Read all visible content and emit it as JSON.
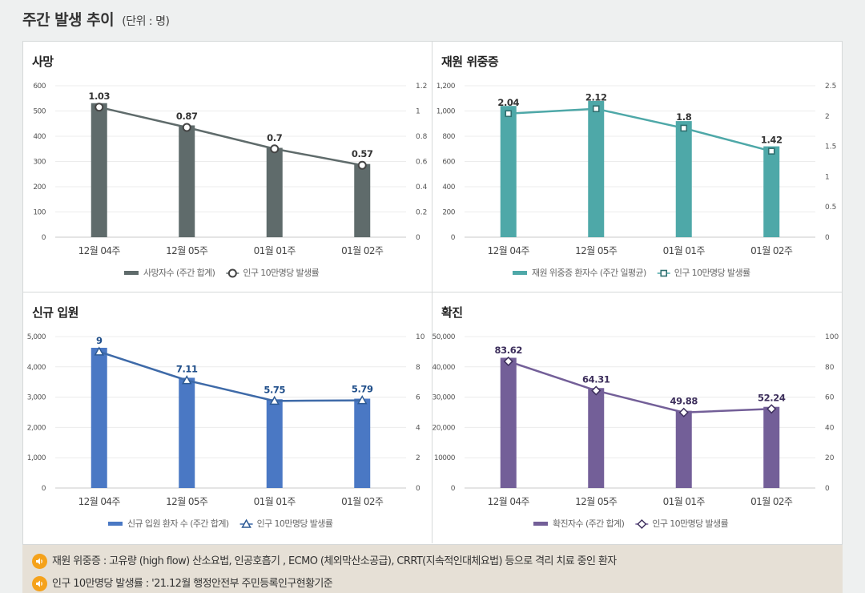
{
  "header": {
    "title": "주간 발생 추이",
    "unit": "(단위 : 명)"
  },
  "notes": [
    "재원 위중증 : 고유량 (high flow) 산소요법, 인공호흡기 , ECMO (체외막산소공급), CRRT(지속적인대체요법) 등으로 격리 치료 중인 환자",
    "인구 10만명당 발생률 : '21.12월 행정안전부 주민등록인구현황기준"
  ],
  "chart_data": [
    {
      "id": "death",
      "type": "bar",
      "title": "사망",
      "categories": [
        "12월 04주",
        "12월 05주",
        "01월 01주",
        "01월 02주"
      ],
      "series": [
        {
          "name": "사망자수 (주간 합계)",
          "type": "bar",
          "axis": "left",
          "values": [
            531,
            443,
            354,
            290
          ]
        },
        {
          "name": "인구 10만명당 발생률",
          "type": "line",
          "axis": "right",
          "values": [
            1.03,
            0.87,
            0.7,
            0.57
          ]
        }
      ],
      "y_left": {
        "min": 0,
        "max": 600,
        "ticks": [
          "0",
          "100",
          "200",
          "300",
          "400",
          "500",
          "600"
        ]
      },
      "y_right": {
        "min": 0,
        "max": 1.2,
        "ticks": [
          "0",
          "0.2",
          "0.4",
          "0.6",
          "0.8",
          "1",
          "1.2"
        ]
      },
      "colors": {
        "bar": "#5f6b6b",
        "line": "#5f6b6b"
      },
      "marker": "circle"
    },
    {
      "id": "severe",
      "type": "bar",
      "title": "재원 위중증",
      "categories": [
        "12월 04주",
        "12월 05주",
        "01월 01주",
        "01월 02주"
      ],
      "series": [
        {
          "name": "재원 위중증 환자수 (주간 일평균)",
          "type": "bar",
          "axis": "left",
          "values": [
            1040,
            1080,
            920,
            720
          ]
        },
        {
          "name": "인구 10만명당 발생률",
          "type": "line",
          "axis": "right",
          "values": [
            2.04,
            2.12,
            1.8,
            1.42
          ]
        }
      ],
      "y_left": {
        "min": 0,
        "max": 1200,
        "ticks": [
          "0",
          "200",
          "400",
          "600",
          "800",
          "1,000",
          "1,200"
        ]
      },
      "y_right": {
        "min": 0,
        "max": 2.5,
        "ticks": [
          "0",
          "0.5",
          "1",
          "1.5",
          "2",
          "2.5"
        ]
      },
      "colors": {
        "bar": "#4ea8a8",
        "line": "#4ea8a8"
      },
      "marker": "square"
    },
    {
      "id": "admission",
      "type": "bar",
      "title": "신규 입원",
      "categories": [
        "12월 04주",
        "12월 05주",
        "01월 01주",
        "01월 02주"
      ],
      "series": [
        {
          "name": "신규 입원 환자 수 (주간 합계)",
          "type": "bar",
          "axis": "left",
          "values": [
            4630,
            3640,
            2930,
            2950
          ]
        },
        {
          "name": "인구 10만명당 발생률",
          "type": "line",
          "axis": "right",
          "values": [
            9,
            7.11,
            5.75,
            5.79
          ]
        }
      ],
      "y_left": {
        "min": 0,
        "max": 5000,
        "ticks": [
          "0",
          "1,000",
          "2,000",
          "3,000",
          "4,000",
          "5,000"
        ]
      },
      "y_right": {
        "min": 0,
        "max": 10,
        "ticks": [
          "0",
          "2",
          "4",
          "6",
          "8",
          "10"
        ]
      },
      "colors": {
        "bar": "#4a78c4",
        "line": "#3e6aa8",
        "label": "#1f4e8a"
      },
      "marker": "triangle"
    },
    {
      "id": "confirmed",
      "type": "bar",
      "title": "확진",
      "categories": [
        "12월 04주",
        "12월 05주",
        "01월 01주",
        "01월 02주"
      ],
      "series": [
        {
          "name": "확진자수 (주간 합계)",
          "type": "bar",
          "axis": "left",
          "values": [
            43000,
            33000,
            25500,
            26800
          ]
        },
        {
          "name": "인구 10만명당 발생률",
          "type": "line",
          "axis": "right",
          "values": [
            83.62,
            64.31,
            49.88,
            52.24
          ]
        }
      ],
      "y_left": {
        "min": 0,
        "max": 50000,
        "ticks": [
          "0",
          "10000",
          "20,000",
          "30,000",
          "40,000",
          "50,000"
        ]
      },
      "y_right": {
        "min": 0,
        "max": 100,
        "ticks": [
          "0",
          "20",
          "40",
          "60",
          "80",
          "100"
        ]
      },
      "colors": {
        "bar": "#735f98",
        "line": "#735f98",
        "label": "#3d2f5c"
      },
      "marker": "diamond"
    }
  ]
}
